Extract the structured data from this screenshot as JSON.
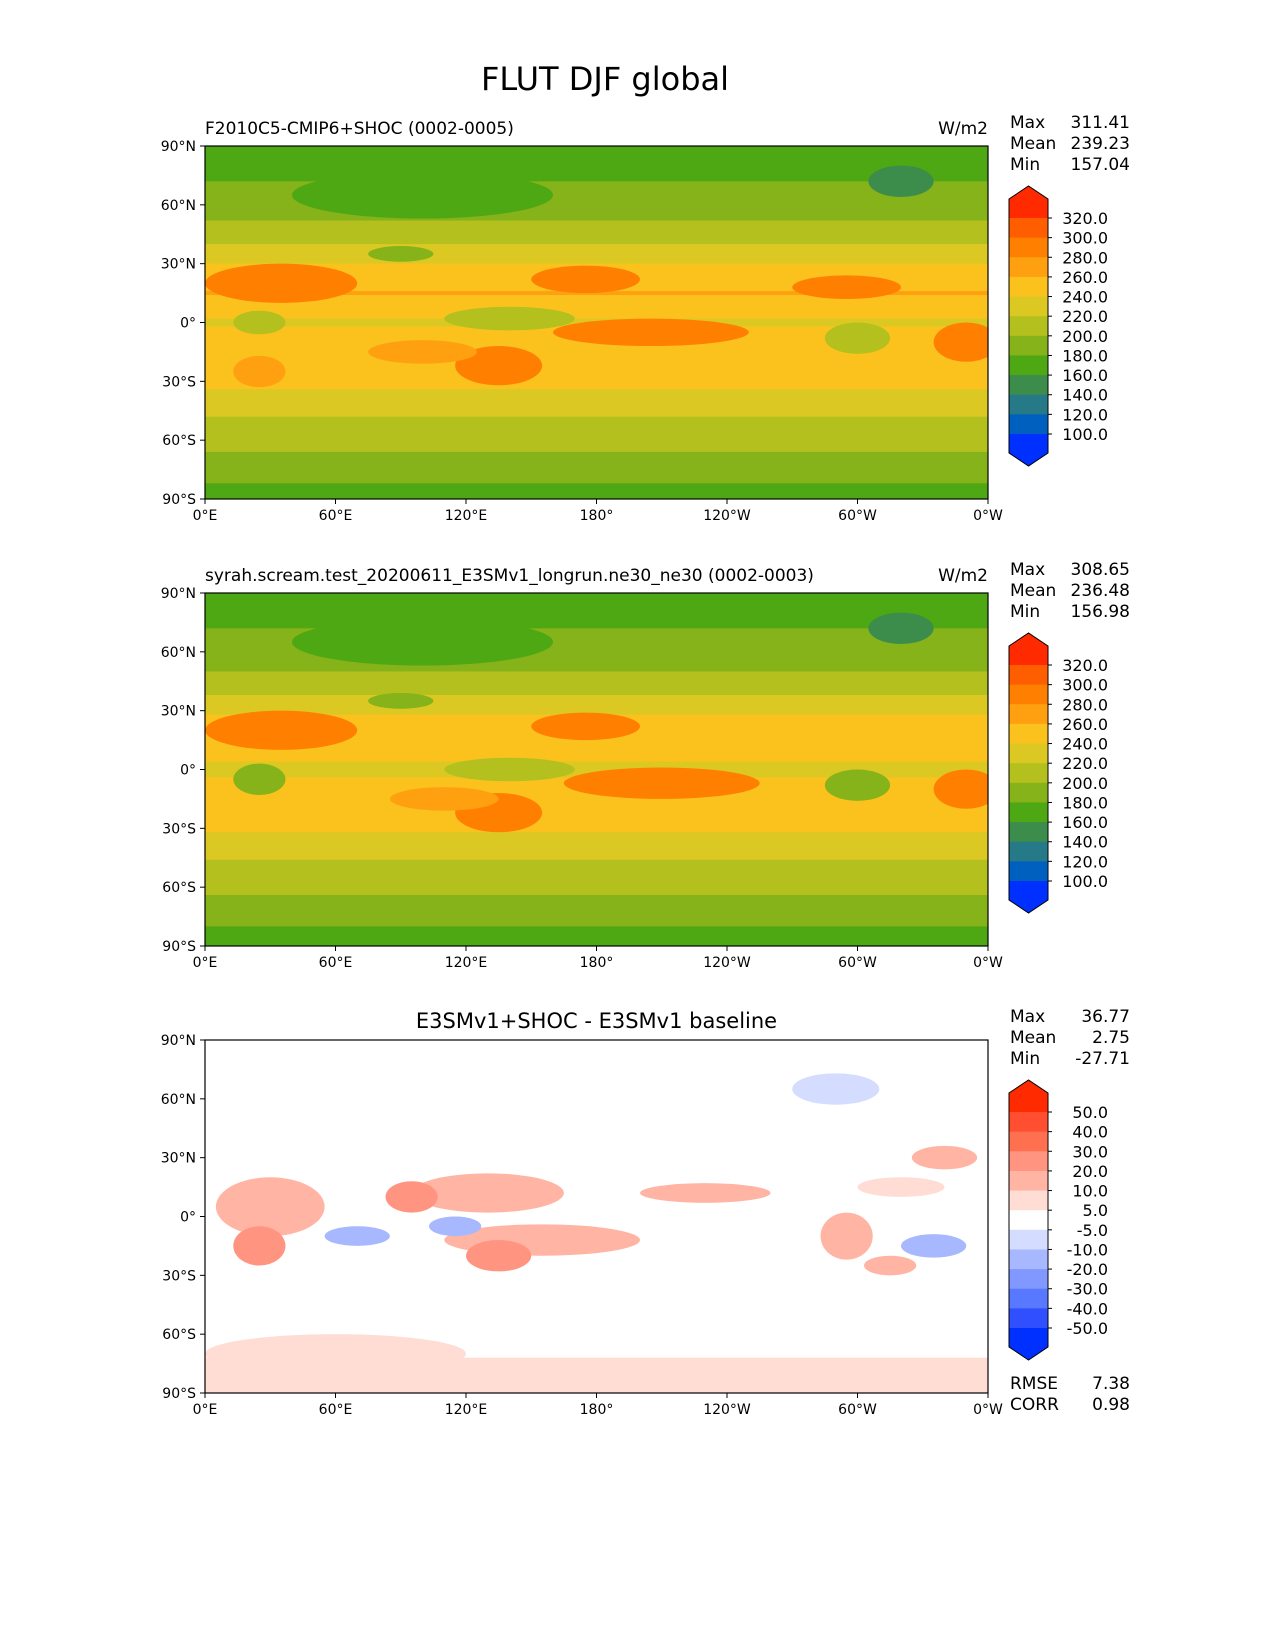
{
  "title": "FLUT DJF global",
  "chart_data": [
    {
      "type": "heatmap",
      "title": "F2010C5-CMIP6+SHOC (0002-0005)",
      "units": "W/m2",
      "stats": {
        "max": "311.41",
        "mean": "239.23",
        "min": "157.04"
      },
      "stat_labels": {
        "max": "Max",
        "mean": "Mean",
        "min": "Min"
      },
      "colorbar": "abs",
      "zonal_profile": {
        "lat": [
          90,
          75,
          60,
          45,
          30,
          15,
          0,
          -15,
          -30,
          -45,
          -60,
          -75,
          -90
        ],
        "value": [
          172,
          178,
          192,
          208,
          240,
          262,
          238,
          252,
          245,
          222,
          208,
          185,
          175
        ]
      },
      "features": [
        {
          "lon": 35,
          "lat": 20,
          "rlon": 35,
          "rlat": 10,
          "value": 285
        },
        {
          "lon": 175,
          "lat": 22,
          "rlon": 25,
          "rlat": 7,
          "value": 285
        },
        {
          "lon": 205,
          "lat": -5,
          "rlon": 45,
          "rlat": 7,
          "value": 282
        },
        {
          "lon": 350,
          "lat": -10,
          "rlon": 15,
          "rlat": 10,
          "value": 285
        },
        {
          "lon": 135,
          "lat": -22,
          "rlon": 20,
          "rlat": 10,
          "value": 280
        },
        {
          "lon": 100,
          "lat": -15,
          "rlon": 25,
          "rlat": 6,
          "value": 275
        },
        {
          "lon": 25,
          "lat": -25,
          "rlon": 12,
          "rlat": 8,
          "value": 275
        },
        {
          "lon": 295,
          "lat": 18,
          "rlon": 25,
          "rlat": 6,
          "value": 280
        },
        {
          "lon": 25,
          "lat": 0,
          "rlon": 12,
          "rlat": 6,
          "value": 212
        },
        {
          "lon": 300,
          "lat": -8,
          "rlon": 15,
          "rlat": 8,
          "value": 205
        },
        {
          "lon": 140,
          "lat": 2,
          "rlon": 30,
          "rlat": 6,
          "value": 218
        },
        {
          "lon": 90,
          "lat": 35,
          "rlon": 15,
          "rlat": 4,
          "value": 195
        },
        {
          "lon": 320,
          "lat": 72,
          "rlon": 15,
          "rlat": 8,
          "value": 155
        },
        {
          "lon": 100,
          "lat": 65,
          "rlon": 60,
          "rlat": 12,
          "value": 178
        }
      ]
    },
    {
      "type": "heatmap",
      "title": "syrah.scream.test_20200611_E3SMv1_longrun.ne30_ne30 (0002-0003)",
      "units": "W/m2",
      "stats": {
        "max": "308.65",
        "mean": "236.48",
        "min": "156.98"
      },
      "stat_labels": {
        "max": "Max",
        "mean": "Mean",
        "min": "Min"
      },
      "colorbar": "abs",
      "zonal_profile": {
        "lat": [
          90,
          75,
          60,
          45,
          30,
          15,
          0,
          -15,
          -30,
          -45,
          -60,
          -75,
          -90
        ],
        "value": [
          172,
          178,
          190,
          206,
          238,
          258,
          235,
          250,
          243,
          220,
          206,
          183,
          174
        ]
      },
      "features": [
        {
          "lon": 35,
          "lat": 20,
          "rlon": 35,
          "rlat": 10,
          "value": 280
        },
        {
          "lon": 175,
          "lat": 22,
          "rlon": 25,
          "rlat": 7,
          "value": 282
        },
        {
          "lon": 210,
          "lat": -7,
          "rlon": 45,
          "rlat": 8,
          "value": 282
        },
        {
          "lon": 350,
          "lat": -10,
          "rlon": 15,
          "rlat": 10,
          "value": 285
        },
        {
          "lon": 135,
          "lat": -22,
          "rlon": 20,
          "rlat": 10,
          "value": 280
        },
        {
          "lon": 110,
          "lat": -15,
          "rlon": 25,
          "rlat": 6,
          "value": 278
        },
        {
          "lon": 25,
          "lat": -5,
          "rlon": 12,
          "rlat": 8,
          "value": 195
        },
        {
          "lon": 300,
          "lat": -8,
          "rlon": 15,
          "rlat": 8,
          "value": 198
        },
        {
          "lon": 140,
          "lat": 0,
          "rlon": 30,
          "rlat": 6,
          "value": 212
        },
        {
          "lon": 90,
          "lat": 35,
          "rlon": 15,
          "rlat": 4,
          "value": 190
        },
        {
          "lon": 320,
          "lat": 72,
          "rlon": 15,
          "rlat": 8,
          "value": 155
        },
        {
          "lon": 100,
          "lat": 65,
          "rlon": 60,
          "rlat": 12,
          "value": 176
        }
      ]
    },
    {
      "type": "heatmap",
      "title": "E3SMv1+SHOC - E3SMv1 baseline",
      "units": "",
      "stats": {
        "max": "36.77",
        "mean": "2.75",
        "min": "-27.71"
      },
      "stat_labels": {
        "max": "Max",
        "mean": "Mean",
        "min": "Min"
      },
      "extra_stats": [
        {
          "label": "RMSE",
          "value": "7.38"
        },
        {
          "label": "CORR",
          "value": "0.98"
        }
      ],
      "colorbar": "diff",
      "zonal_profile": {
        "lat": [
          90,
          75,
          60,
          45,
          30,
          15,
          0,
          -15,
          -30,
          -45,
          -60,
          -75,
          -90
        ],
        "value": [
          0,
          0,
          0,
          0,
          0,
          0,
          0,
          0,
          0,
          0,
          0,
          6,
          8
        ]
      },
      "features": [
        {
          "lon": 30,
          "lat": 5,
          "rlon": 25,
          "rlat": 15,
          "value": 14
        },
        {
          "lon": 25,
          "lat": -15,
          "rlon": 12,
          "rlat": 10,
          "value": 22
        },
        {
          "lon": 130,
          "lat": 12,
          "rlon": 35,
          "rlat": 10,
          "value": 12
        },
        {
          "lon": 95,
          "lat": 10,
          "rlon": 12,
          "rlat": 8,
          "value": 25
        },
        {
          "lon": 155,
          "lat": -12,
          "rlon": 45,
          "rlat": 8,
          "value": 14
        },
        {
          "lon": 135,
          "lat": -20,
          "rlon": 15,
          "rlat": 8,
          "value": 22
        },
        {
          "lon": 230,
          "lat": 12,
          "rlon": 30,
          "rlat": 5,
          "value": 14
        },
        {
          "lon": 295,
          "lat": -10,
          "rlon": 12,
          "rlat": 12,
          "value": 16
        },
        {
          "lon": 315,
          "lat": -25,
          "rlon": 12,
          "rlat": 5,
          "value": 14
        },
        {
          "lon": 70,
          "lat": -10,
          "rlon": 15,
          "rlat": 5,
          "value": -14
        },
        {
          "lon": 115,
          "lat": -5,
          "rlon": 12,
          "rlat": 5,
          "value": -14
        },
        {
          "lon": 335,
          "lat": -15,
          "rlon": 15,
          "rlat": 6,
          "value": -12
        },
        {
          "lon": 290,
          "lat": 65,
          "rlon": 20,
          "rlat": 8,
          "value": -8
        },
        {
          "lon": 340,
          "lat": 30,
          "rlon": 15,
          "rlat": 6,
          "value": 10
        },
        {
          "lon": 320,
          "lat": 15,
          "rlon": 20,
          "rlat": 5,
          "value": 8
        },
        {
          "lon": 60,
          "lat": -70,
          "rlon": 60,
          "rlat": 10,
          "value": 8
        }
      ]
    }
  ],
  "axes": {
    "lon_ticks": [
      "0°E",
      "60°E",
      "120°E",
      "180°",
      "120°W",
      "60°W",
      "0°W"
    ],
    "lat_ticks": [
      "90°N",
      "60°N",
      "30°N",
      "0°",
      "30°S",
      "60°S",
      "90°S"
    ]
  },
  "colorbars": {
    "abs": {
      "labels": [
        "320.0",
        "300.0",
        "280.0",
        "260.0",
        "240.0",
        "220.0",
        "200.0",
        "180.0",
        "160.0",
        "140.0",
        "120.0",
        "100.0"
      ],
      "levels": [
        320,
        300,
        280,
        260,
        240,
        220,
        200,
        180,
        160,
        140,
        120,
        100
      ],
      "colors": [
        "#ff2a00",
        "#ff5e00",
        "#ff8000",
        "#ffa010",
        "#fbc21e",
        "#dcc822",
        "#b4c01e",
        "#86b21a",
        "#4ea814",
        "#3c8c4c",
        "#267a88",
        "#0060c0",
        "#0030ff"
      ]
    },
    "diff": {
      "labels": [
        "50.0",
        "40.0",
        "30.0",
        "20.0",
        "10.0",
        "5.0",
        "-5.0",
        "-10.0",
        "-20.0",
        "-30.0",
        "-40.0",
        "-50.0"
      ],
      "levels": [
        50,
        40,
        30,
        20,
        10,
        5,
        -5,
        -10,
        -20,
        -30,
        -40,
        -50
      ],
      "colors": [
        "#ff2a00",
        "#ff4e30",
        "#ff7050",
        "#ff9480",
        "#ffb4a4",
        "#ffdcd4",
        "#ffffff",
        "#d4dcff",
        "#a8b8ff",
        "#8098ff",
        "#5878ff",
        "#3050ff",
        "#0030ff"
      ]
    }
  }
}
